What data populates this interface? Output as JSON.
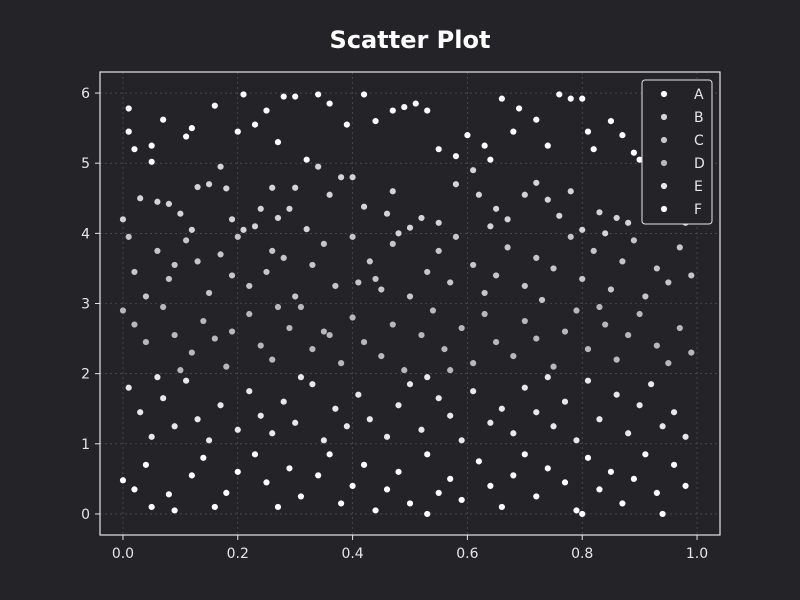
{
  "chart_data": {
    "type": "scatter",
    "title": "Scatter Plot",
    "xlabel": "",
    "ylabel": "",
    "xlim": [
      -0.04,
      1.04
    ],
    "ylim": [
      -0.3,
      6.3
    ],
    "xticks": [
      "0.0",
      "0.2",
      "0.4",
      "0.6",
      "0.8",
      "1.0"
    ],
    "yticks": [
      "0",
      "1",
      "2",
      "3",
      "4",
      "5",
      "6"
    ],
    "grid": true,
    "legend_position": "top-right",
    "series": [
      {
        "name": "A",
        "color": "#ffffff",
        "points": [
          [
            0.01,
            5.78
          ],
          [
            0.02,
            5.2
          ],
          [
            0.05,
            5.25
          ],
          [
            0.07,
            5.62
          ],
          [
            0.12,
            5.5
          ],
          [
            0.16,
            5.82
          ],
          [
            0.2,
            5.45
          ],
          [
            0.21,
            5.98
          ],
          [
            0.25,
            5.75
          ],
          [
            0.28,
            5.95
          ],
          [
            0.3,
            5.95
          ],
          [
            0.34,
            5.98
          ],
          [
            0.36,
            5.85
          ],
          [
            0.42,
            5.98
          ],
          [
            0.47,
            5.75
          ],
          [
            0.49,
            5.8
          ],
          [
            0.51,
            5.85
          ],
          [
            0.53,
            5.75
          ],
          [
            0.55,
            5.2
          ],
          [
            0.6,
            5.4
          ],
          [
            0.63,
            5.25
          ],
          [
            0.66,
            5.92
          ],
          [
            0.69,
            5.78
          ],
          [
            0.72,
            5.62
          ],
          [
            0.76,
            5.98
          ],
          [
            0.78,
            5.92
          ],
          [
            0.8,
            5.92
          ],
          [
            0.81,
            5.45
          ],
          [
            0.85,
            5.6
          ],
          [
            0.87,
            5.4
          ],
          [
            0.89,
            5.15
          ],
          [
            0.94,
            5.95
          ],
          [
            0.97,
            5.3
          ],
          [
            0.98,
            5.62
          ],
          [
            0.01,
            5.45
          ],
          [
            0.11,
            5.38
          ],
          [
            0.27,
            5.3
          ],
          [
            0.44,
            5.6
          ],
          [
            0.58,
            5.1
          ],
          [
            0.74,
            5.25
          ],
          [
            0.9,
            5.05
          ],
          [
            0.96,
            5.15
          ],
          [
            0.32,
            5.05
          ],
          [
            0.39,
            5.55
          ],
          [
            0.64,
            5.05
          ],
          [
            0.82,
            5.2
          ],
          [
            0.05,
            5.02
          ],
          [
            0.23,
            5.55
          ],
          [
            0.68,
            5.45
          ],
          [
            0.92,
            5.52
          ]
        ]
      },
      {
        "name": "B",
        "color": "#d4d4d6",
        "points": [
          [
            0.0,
            4.2
          ],
          [
            0.03,
            4.5
          ],
          [
            0.06,
            4.45
          ],
          [
            0.08,
            4.42
          ],
          [
            0.1,
            4.28
          ],
          [
            0.13,
            4.66
          ],
          [
            0.15,
            4.7
          ],
          [
            0.18,
            4.64
          ],
          [
            0.19,
            4.2
          ],
          [
            0.21,
            4.05
          ],
          [
            0.23,
            4.1
          ],
          [
            0.24,
            4.35
          ],
          [
            0.26,
            4.65
          ],
          [
            0.27,
            4.22
          ],
          [
            0.29,
            4.35
          ],
          [
            0.3,
            4.65
          ],
          [
            0.32,
            4.06
          ],
          [
            0.36,
            4.55
          ],
          [
            0.38,
            4.8
          ],
          [
            0.4,
            4.8
          ],
          [
            0.42,
            4.38
          ],
          [
            0.46,
            4.28
          ],
          [
            0.47,
            4.6
          ],
          [
            0.48,
            4.0
          ],
          [
            0.5,
            4.08
          ],
          [
            0.52,
            4.22
          ],
          [
            0.55,
            4.15
          ],
          [
            0.58,
            4.7
          ],
          [
            0.62,
            4.55
          ],
          [
            0.64,
            4.1
          ],
          [
            0.65,
            4.35
          ],
          [
            0.67,
            4.2
          ],
          [
            0.7,
            4.55
          ],
          [
            0.72,
            4.72
          ],
          [
            0.74,
            4.48
          ],
          [
            0.76,
            4.25
          ],
          [
            0.78,
            4.6
          ],
          [
            0.8,
            4.05
          ],
          [
            0.83,
            4.3
          ],
          [
            0.84,
            4.0
          ],
          [
            0.86,
            4.22
          ],
          [
            0.88,
            4.15
          ],
          [
            0.91,
            4.55
          ],
          [
            0.94,
            4.25
          ],
          [
            0.96,
            4.38
          ],
          [
            0.98,
            4.15
          ],
          [
            0.12,
            4.05
          ],
          [
            0.17,
            4.95
          ],
          [
            0.34,
            4.95
          ],
          [
            0.61,
            4.9
          ]
        ]
      },
      {
        "name": "C",
        "color": "#c6c6c8",
        "points": [
          [
            0.01,
            3.95
          ],
          [
            0.02,
            3.45
          ],
          [
            0.04,
            3.1
          ],
          [
            0.06,
            3.75
          ],
          [
            0.08,
            3.35
          ],
          [
            0.09,
            3.55
          ],
          [
            0.11,
            3.9
          ],
          [
            0.13,
            3.6
          ],
          [
            0.15,
            3.15
          ],
          [
            0.17,
            3.7
          ],
          [
            0.19,
            3.4
          ],
          [
            0.2,
            3.95
          ],
          [
            0.22,
            3.25
          ],
          [
            0.25,
            3.45
          ],
          [
            0.26,
            3.75
          ],
          [
            0.28,
            3.65
          ],
          [
            0.3,
            3.1
          ],
          [
            0.33,
            3.55
          ],
          [
            0.35,
            3.85
          ],
          [
            0.37,
            3.25
          ],
          [
            0.4,
            3.95
          ],
          [
            0.41,
            3.3
          ],
          [
            0.43,
            3.6
          ],
          [
            0.45,
            3.2
          ],
          [
            0.47,
            3.85
          ],
          [
            0.5,
            3.1
          ],
          [
            0.53,
            3.45
          ],
          [
            0.55,
            3.75
          ],
          [
            0.57,
            3.3
          ],
          [
            0.58,
            3.95
          ],
          [
            0.61,
            3.55
          ],
          [
            0.63,
            3.15
          ],
          [
            0.65,
            3.4
          ],
          [
            0.67,
            3.8
          ],
          [
            0.7,
            3.25
          ],
          [
            0.72,
            3.65
          ],
          [
            0.73,
            3.05
          ],
          [
            0.75,
            3.5
          ],
          [
            0.78,
            3.95
          ],
          [
            0.8,
            3.35
          ],
          [
            0.82,
            3.75
          ],
          [
            0.85,
            3.2
          ],
          [
            0.87,
            3.6
          ],
          [
            0.89,
            3.9
          ],
          [
            0.91,
            3.1
          ],
          [
            0.93,
            3.5
          ],
          [
            0.95,
            3.3
          ],
          [
            0.97,
            3.8
          ],
          [
            0.99,
            3.4
          ],
          [
            0.44,
            3.35
          ]
        ]
      },
      {
        "name": "D",
        "color": "#b8b8bb",
        "points": [
          [
            0.0,
            2.9
          ],
          [
            0.02,
            2.7
          ],
          [
            0.04,
            2.45
          ],
          [
            0.07,
            2.95
          ],
          [
            0.09,
            2.55
          ],
          [
            0.12,
            2.3
          ],
          [
            0.14,
            2.75
          ],
          [
            0.16,
            2.5
          ],
          [
            0.18,
            2.1
          ],
          [
            0.19,
            2.6
          ],
          [
            0.22,
            2.85
          ],
          [
            0.24,
            2.4
          ],
          [
            0.26,
            2.2
          ],
          [
            0.29,
            2.65
          ],
          [
            0.31,
            2.95
          ],
          [
            0.33,
            2.35
          ],
          [
            0.35,
            2.6
          ],
          [
            0.38,
            2.15
          ],
          [
            0.4,
            2.8
          ],
          [
            0.42,
            2.45
          ],
          [
            0.45,
            2.25
          ],
          [
            0.47,
            2.7
          ],
          [
            0.49,
            2.05
          ],
          [
            0.52,
            2.55
          ],
          [
            0.54,
            2.9
          ],
          [
            0.56,
            2.35
          ],
          [
            0.59,
            2.65
          ],
          [
            0.61,
            2.15
          ],
          [
            0.63,
            2.85
          ],
          [
            0.65,
            2.45
          ],
          [
            0.68,
            2.25
          ],
          [
            0.7,
            2.75
          ],
          [
            0.72,
            2.5
          ],
          [
            0.75,
            2.1
          ],
          [
            0.77,
            2.6
          ],
          [
            0.79,
            2.9
          ],
          [
            0.81,
            2.35
          ],
          [
            0.84,
            2.7
          ],
          [
            0.86,
            2.2
          ],
          [
            0.88,
            2.55
          ],
          [
            0.9,
            2.85
          ],
          [
            0.93,
            2.4
          ],
          [
            0.95,
            2.15
          ],
          [
            0.97,
            2.65
          ],
          [
            0.99,
            2.3
          ],
          [
            0.1,
            2.05
          ],
          [
            0.27,
            2.95
          ],
          [
            0.57,
            2.05
          ],
          [
            0.83,
            2.95
          ],
          [
            0.36,
            2.55
          ]
        ]
      },
      {
        "name": "E",
        "color": "#e8e8ea",
        "points": [
          [
            0.01,
            1.8
          ],
          [
            0.03,
            1.45
          ],
          [
            0.05,
            1.1
          ],
          [
            0.07,
            1.65
          ],
          [
            0.09,
            1.25
          ],
          [
            0.11,
            1.9
          ],
          [
            0.13,
            1.35
          ],
          [
            0.15,
            1.05
          ],
          [
            0.17,
            1.55
          ],
          [
            0.2,
            1.2
          ],
          [
            0.22,
            1.75
          ],
          [
            0.24,
            1.4
          ],
          [
            0.26,
            1.15
          ],
          [
            0.28,
            1.6
          ],
          [
            0.3,
            1.3
          ],
          [
            0.33,
            1.85
          ],
          [
            0.35,
            1.05
          ],
          [
            0.37,
            1.5
          ],
          [
            0.39,
            1.25
          ],
          [
            0.41,
            1.7
          ],
          [
            0.43,
            1.35
          ],
          [
            0.46,
            1.1
          ],
          [
            0.48,
            1.55
          ],
          [
            0.5,
            1.85
          ],
          [
            0.52,
            1.2
          ],
          [
            0.55,
            1.65
          ],
          [
            0.57,
            1.4
          ],
          [
            0.59,
            1.05
          ],
          [
            0.61,
            1.75
          ],
          [
            0.64,
            1.3
          ],
          [
            0.66,
            1.5
          ],
          [
            0.68,
            1.15
          ],
          [
            0.7,
            1.8
          ],
          [
            0.72,
            1.45
          ],
          [
            0.75,
            1.25
          ],
          [
            0.77,
            1.6
          ],
          [
            0.79,
            1.05
          ],
          [
            0.81,
            1.9
          ],
          [
            0.83,
            1.35
          ],
          [
            0.86,
            1.7
          ],
          [
            0.88,
            1.15
          ],
          [
            0.9,
            1.55
          ],
          [
            0.92,
            1.85
          ],
          [
            0.94,
            1.25
          ],
          [
            0.96,
            1.45
          ],
          [
            0.98,
            1.1
          ],
          [
            0.06,
            1.95
          ],
          [
            0.31,
            1.95
          ],
          [
            0.53,
            1.95
          ],
          [
            0.74,
            1.95
          ]
        ]
      },
      {
        "name": "F",
        "color": "#ffffff",
        "points": [
          [
            0.0,
            0.48
          ],
          [
            0.02,
            0.35
          ],
          [
            0.04,
            0.7
          ],
          [
            0.05,
            0.1
          ],
          [
            0.08,
            0.28
          ],
          [
            0.09,
            0.05
          ],
          [
            0.12,
            0.55
          ],
          [
            0.14,
            0.8
          ],
          [
            0.16,
            0.1
          ],
          [
            0.18,
            0.3
          ],
          [
            0.2,
            0.6
          ],
          [
            0.23,
            0.85
          ],
          [
            0.25,
            0.45
          ],
          [
            0.27,
            0.1
          ],
          [
            0.29,
            0.65
          ],
          [
            0.31,
            0.25
          ],
          [
            0.34,
            0.55
          ],
          [
            0.36,
            0.85
          ],
          [
            0.38,
            0.15
          ],
          [
            0.4,
            0.4
          ],
          [
            0.42,
            0.7
          ],
          [
            0.44,
            0.05
          ],
          [
            0.46,
            0.35
          ],
          [
            0.48,
            0.6
          ],
          [
            0.5,
            0.15
          ],
          [
            0.53,
            0.85
          ],
          [
            0.55,
            0.3
          ],
          [
            0.57,
            0.5
          ],
          [
            0.59,
            0.2
          ],
          [
            0.62,
            0.75
          ],
          [
            0.64,
            0.4
          ],
          [
            0.66,
            0.1
          ],
          [
            0.68,
            0.55
          ],
          [
            0.7,
            0.85
          ],
          [
            0.72,
            0.25
          ],
          [
            0.74,
            0.65
          ],
          [
            0.77,
            0.45
          ],
          [
            0.79,
            0.05
          ],
          [
            0.81,
            0.8
          ],
          [
            0.83,
            0.35
          ],
          [
            0.85,
            0.6
          ],
          [
            0.87,
            0.15
          ],
          [
            0.89,
            0.5
          ],
          [
            0.91,
            0.85
          ],
          [
            0.93,
            0.3
          ],
          [
            0.94,
            0.0
          ],
          [
            0.96,
            0.7
          ],
          [
            0.98,
            0.4
          ],
          [
            0.53,
            0.0
          ],
          [
            0.8,
            0.0
          ]
        ]
      }
    ]
  }
}
